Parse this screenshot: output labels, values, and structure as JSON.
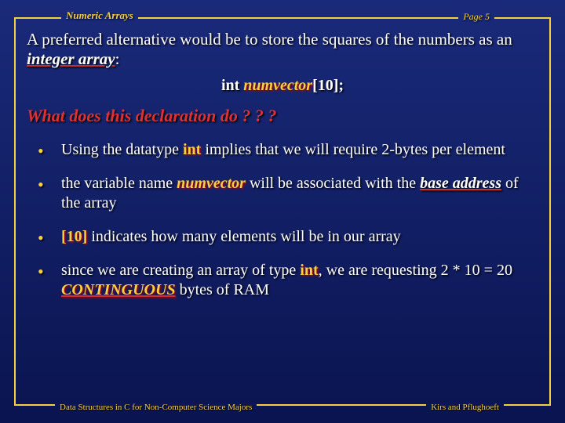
{
  "header": {
    "left": "Numeric Arrays",
    "right": "Page 5"
  },
  "intro": {
    "pre": "A preferred alternative would be to store the squares of the numbers as an ",
    "emph": "integer array",
    "post": ":"
  },
  "code": {
    "kw": "int ",
    "ident": "numvector",
    "suffix": "[10];"
  },
  "question": "What does this declaration do ? ? ?",
  "bullets": {
    "b1": {
      "pre": "Using the datatype ",
      "kw": "int",
      "post": " implies that we will require 2-bytes per element"
    },
    "b2": {
      "pre": "the variable name ",
      "ident": "numvector",
      "mid": " will be associated with the ",
      "base": "base address",
      "post": " of the array"
    },
    "b3": {
      "br": "[10]",
      "post": " indicates how many elements will be in our array"
    },
    "b4": {
      "pre": "since we are creating an array of type ",
      "kw": "int",
      "mid": ", we are requesting  2 * 10 = 20 ",
      "contig": "CONTINGUOUS",
      "post": " bytes of RAM"
    }
  },
  "footer": {
    "left": "Data Structures in C for Non-Computer Science Majors",
    "right": "Kirs and Pflughoeft"
  },
  "colors": {
    "frame": "#f5d040",
    "text": "#ffffff",
    "accent": "#f5d040",
    "red": "#e03030",
    "bg_top": "#1a2a7a",
    "bg_bottom": "#0a1450"
  },
  "typography": {
    "body_fontsize": 20,
    "title_fontsize": 21,
    "question_fontsize": 22,
    "header_fontsize": 13,
    "footer_fontsize": 11,
    "font_family": "Times New Roman"
  }
}
